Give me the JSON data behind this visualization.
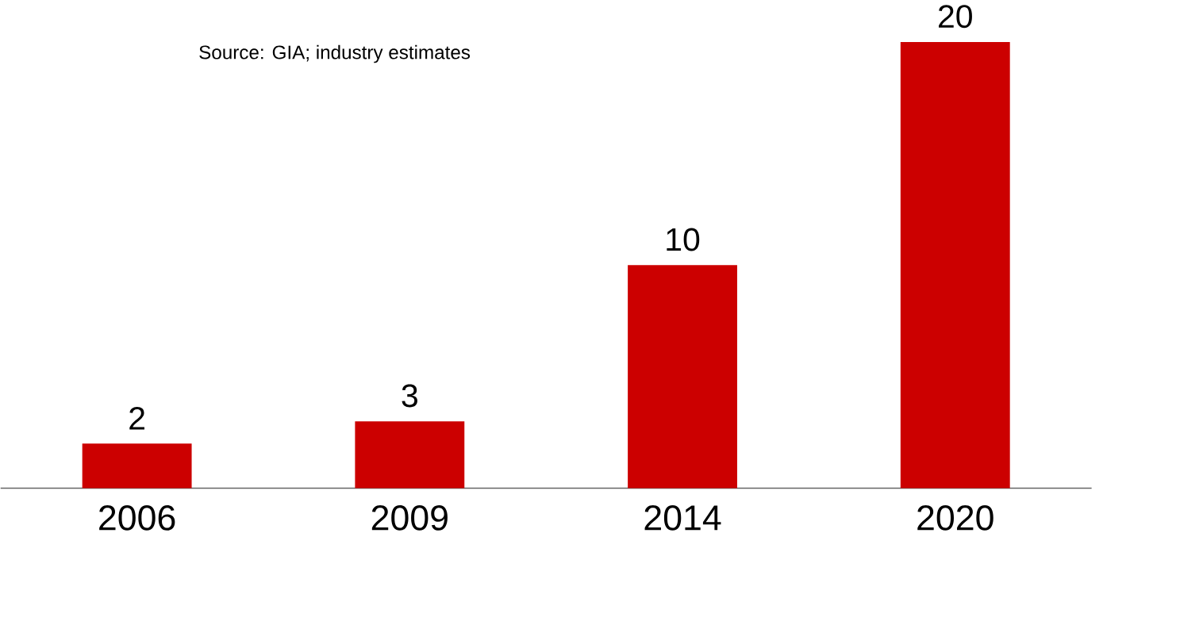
{
  "chart_data": {
    "type": "bar",
    "categories": [
      "2006",
      "2009",
      "2014",
      "2020"
    ],
    "values": [
      2,
      3,
      10,
      20
    ],
    "color": "#cc0000",
    "data_labels": true,
    "annotations": [
      "Source: GIA; industry estimates"
    ]
  }
}
